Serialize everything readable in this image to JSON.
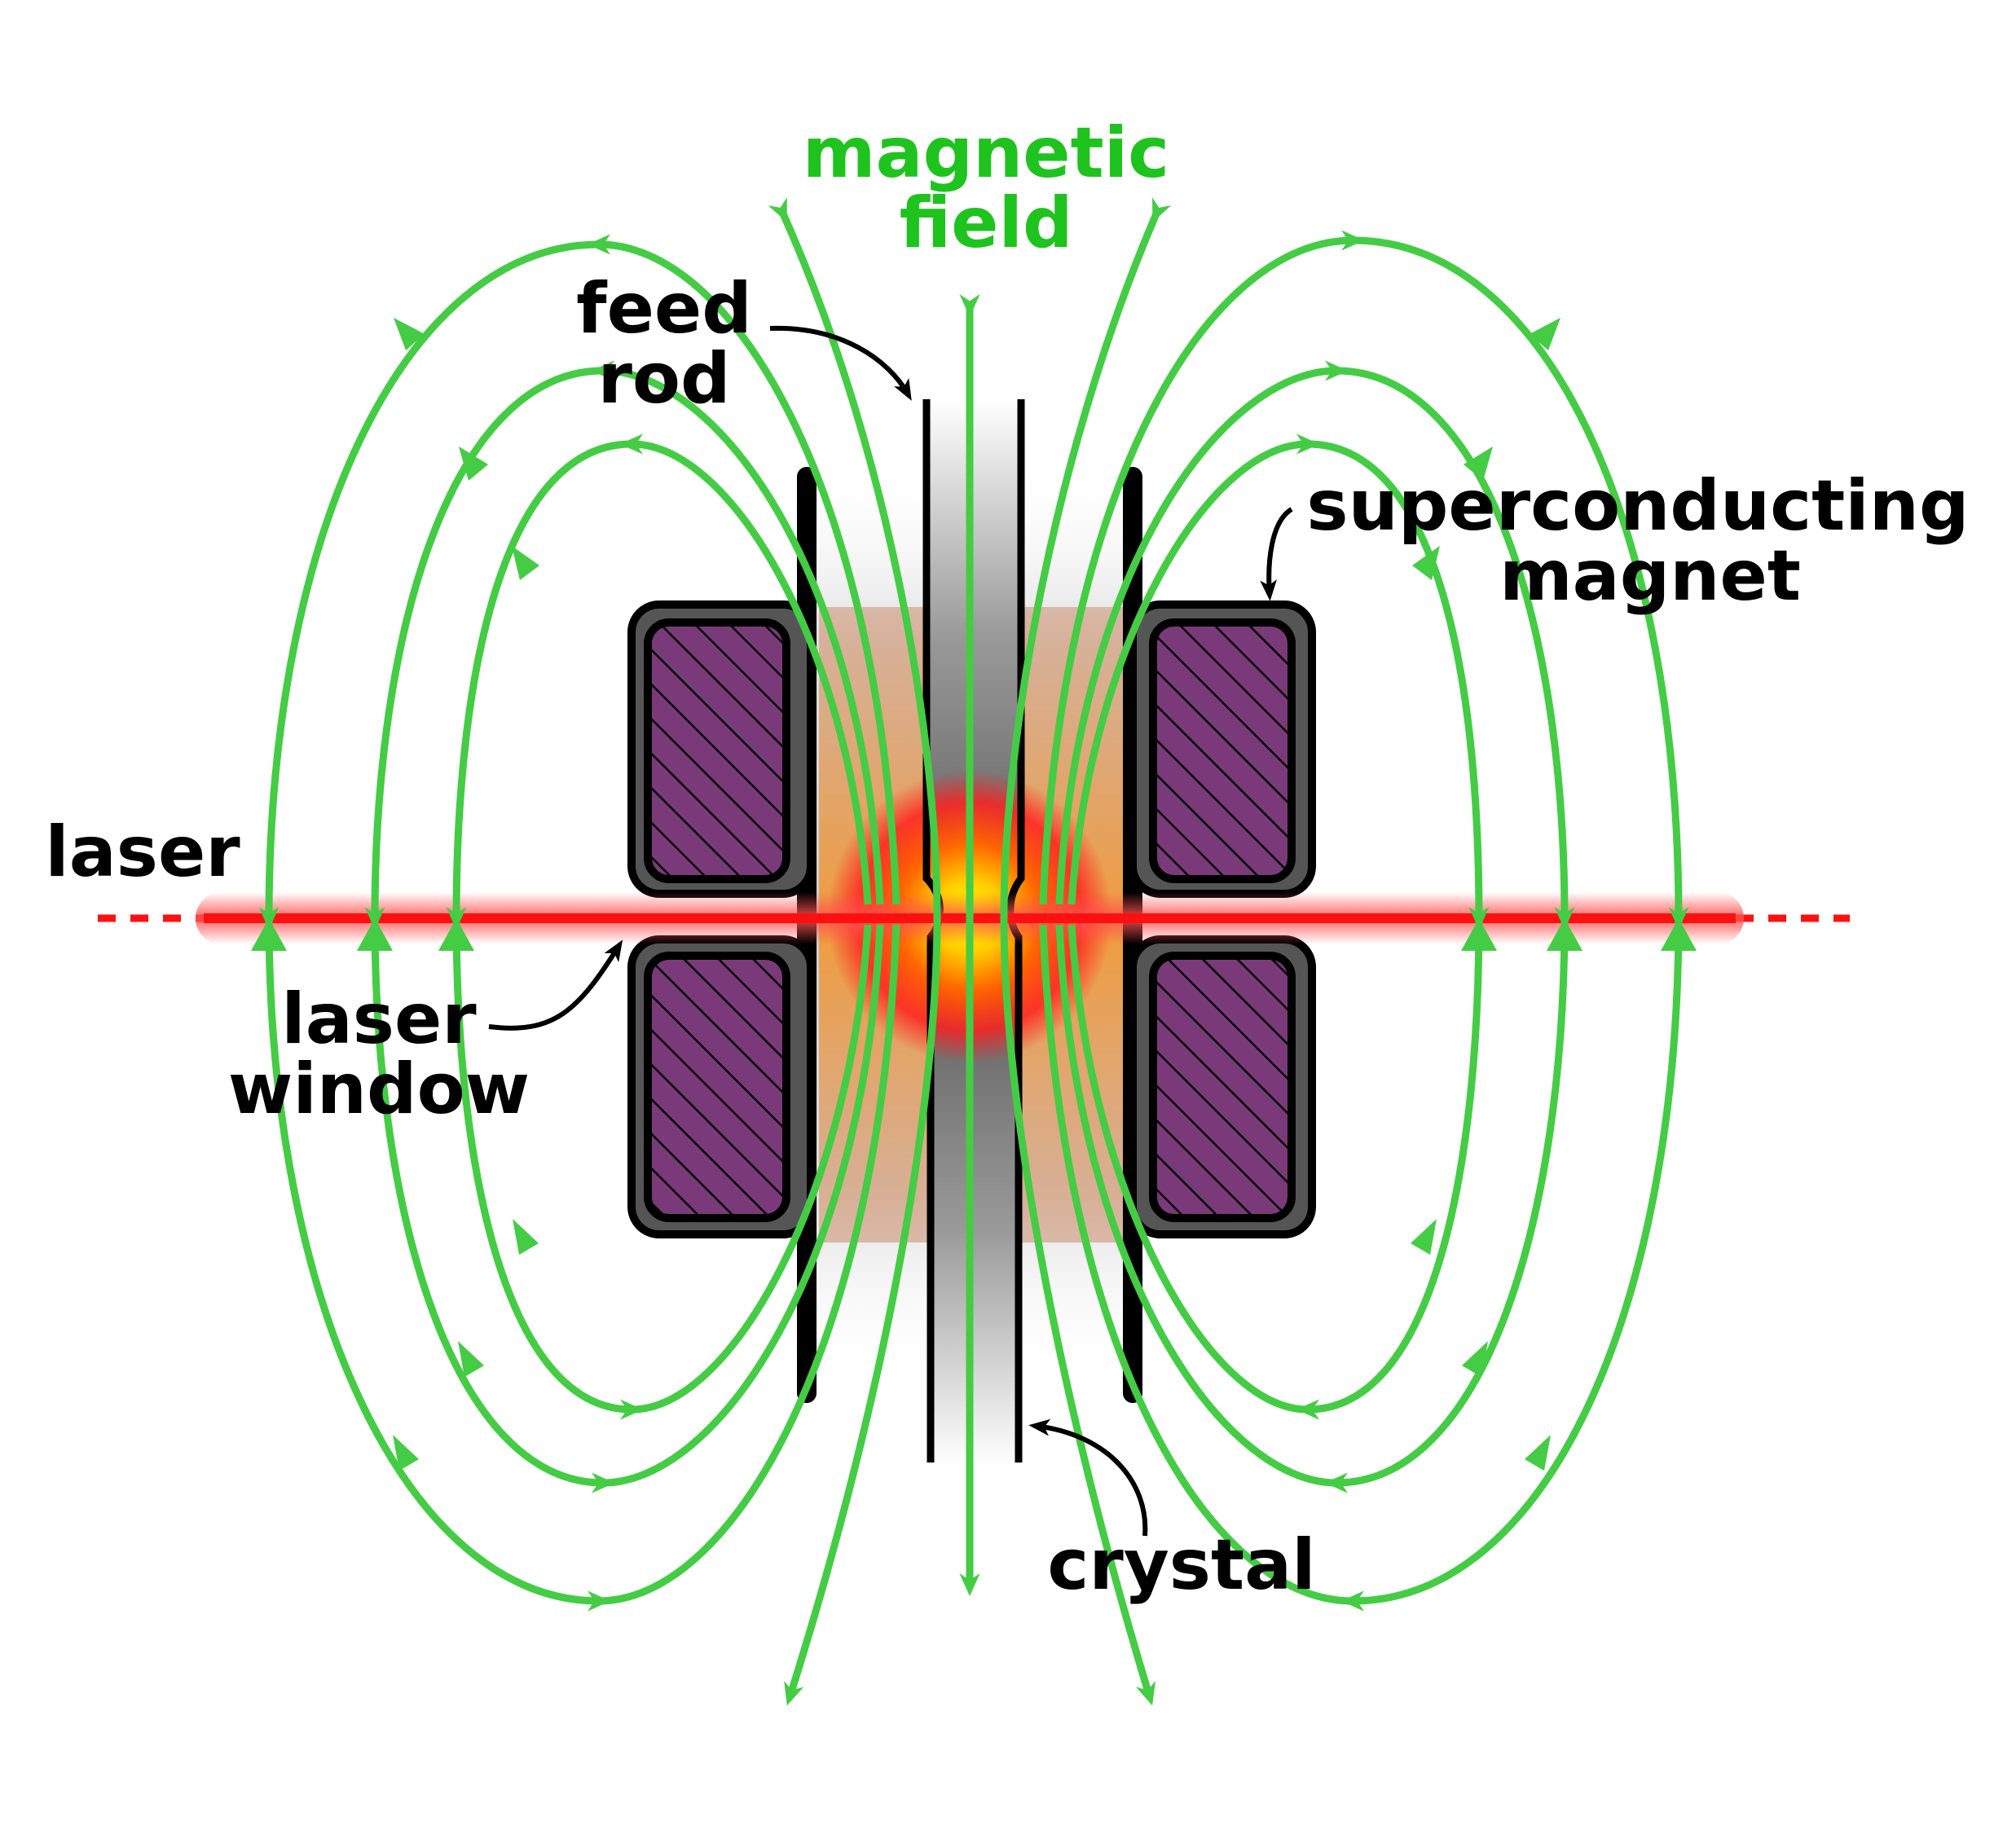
{
  "diagram": {
    "labels": {
      "magnetic_field_line1": "magnetic",
      "magnetic_field_line2": "field",
      "feed_rod_line1": "feed",
      "feed_rod_line2": "rod",
      "superconducting_magnet_line1": "superconducting",
      "superconducting_magnet_line2": "magnet",
      "laser": "laser",
      "laser_window_line1": "laser",
      "laser_window_line2": "window",
      "crystal": "crystal"
    },
    "colors": {
      "field_lines": "#44cc44",
      "field_label": "#1ec31e",
      "laser": "#ff1010",
      "magnet_frame": "#555555",
      "magnet_coil": "#7a3a7a",
      "outline": "#000000"
    }
  }
}
